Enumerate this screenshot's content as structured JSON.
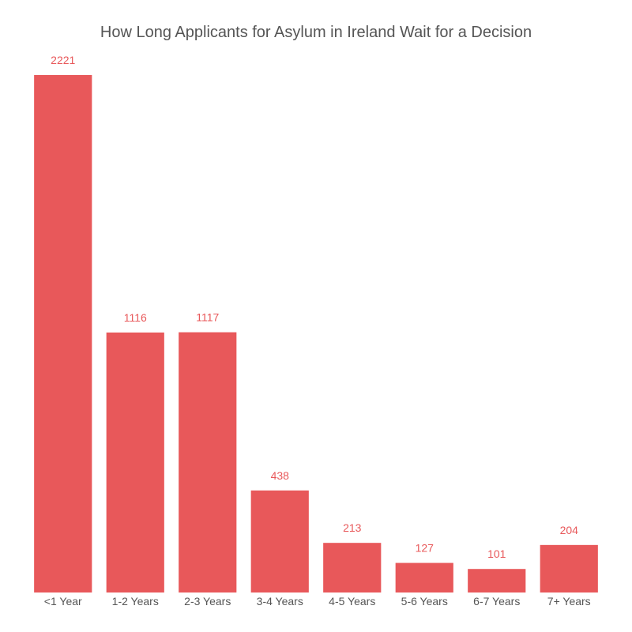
{
  "chart_data": {
    "type": "bar",
    "title": "How Long Applicants for Asylum in Ireland Wait for a Decision",
    "xlabel": "",
    "ylabel": "",
    "categories": [
      "<1 Year",
      "1-2 Years",
      "2-3 Years",
      "3-4 Years",
      "4-5 Years",
      "5-6 Years",
      "6-7 Years",
      "7+ Years"
    ],
    "values": [
      2221,
      1116,
      1117,
      438,
      213,
      127,
      101,
      204
    ],
    "ylim": [
      0,
      2221
    ],
    "grid": false,
    "legend": "none",
    "colors": {
      "bar": "#e8585a",
      "data_label": "#e8585a",
      "text": "#555555"
    }
  }
}
